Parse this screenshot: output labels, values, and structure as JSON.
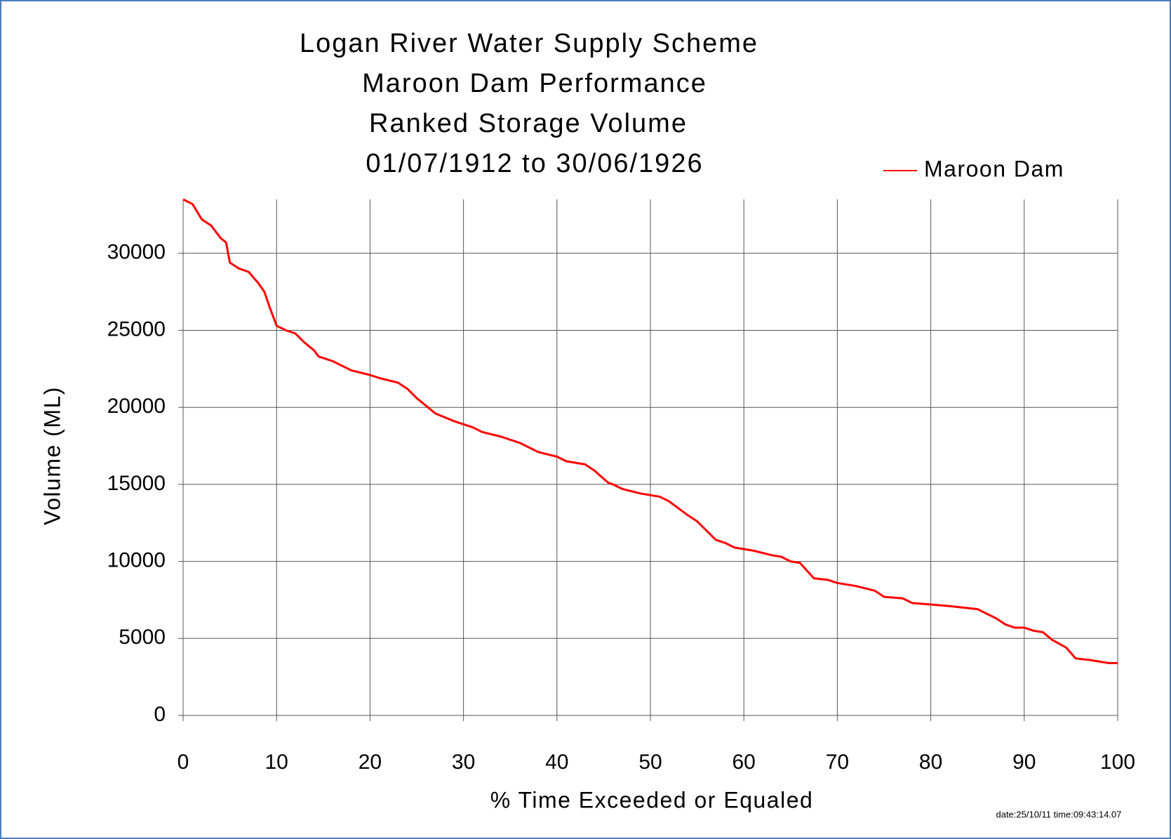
{
  "chart_data": {
    "type": "line",
    "title": [
      "Logan River Water Supply Scheme",
      "Maroon Dam Performance",
      "Ranked Storage Volume",
      "01/07/1912 to 30/06/1926"
    ],
    "x_label": "% Time Exceeded or Equaled",
    "y_label": "Volume (ML)",
    "footnote": "date:25/10/11 time:09:43:14.07",
    "x": [
      0,
      1,
      2,
      3,
      4,
      4.6,
      5,
      6,
      7,
      8,
      8.7,
      9.2,
      10,
      11,
      12,
      13,
      14,
      14.5,
      16,
      17,
      18,
      20,
      21,
      23,
      24,
      25,
      27,
      29,
      31,
      32,
      34,
      36,
      38,
      40,
      41,
      43,
      44,
      45.5,
      46,
      47,
      49,
      51,
      52,
      54,
      55,
      56,
      57,
      58,
      59,
      61,
      63,
      64,
      65,
      66,
      67.5,
      69,
      70,
      72,
      74,
      75,
      77,
      78,
      80,
      82,
      85,
      86,
      87,
      88,
      89,
      90,
      91,
      92,
      93,
      94.5,
      95.5,
      97,
      99,
      100
    ],
    "series": [
      {
        "name": "Maroon Dam",
        "color": "#ff0000",
        "values": [
          33500,
          33200,
          32200,
          31800,
          31000,
          30700,
          29400,
          29000,
          28800,
          28100,
          27500,
          26600,
          25300,
          25000,
          24800,
          24200,
          23700,
          23300,
          23000,
          22700,
          22400,
          22100,
          21900,
          21600,
          21200,
          20600,
          19600,
          19100,
          18700,
          18400,
          18100,
          17700,
          17100,
          16800,
          16500,
          16300,
          15900,
          15100,
          15000,
          14700,
          14400,
          14200,
          13900,
          13000,
          12600,
          12000,
          11400,
          11200,
          10900,
          10700,
          10400,
          10300,
          10000,
          9900,
          8900,
          8800,
          8600,
          8400,
          8100,
          7700,
          7600,
          7300,
          7200,
          7100,
          6900,
          6600,
          6300,
          5900,
          5700,
          5700,
          5500,
          5400,
          4900,
          4400,
          3700,
          3600,
          3400,
          3400
        ]
      }
    ],
    "xlim": [
      0,
      100
    ],
    "xticks": [
      0,
      10,
      20,
      30,
      40,
      50,
      60,
      70,
      80,
      90,
      100
    ],
    "ylim": [
      0,
      33500
    ],
    "yticks": [
      0,
      5000,
      10000,
      15000,
      20000,
      25000,
      30000
    ],
    "grid": true,
    "legend": "top-right"
  }
}
